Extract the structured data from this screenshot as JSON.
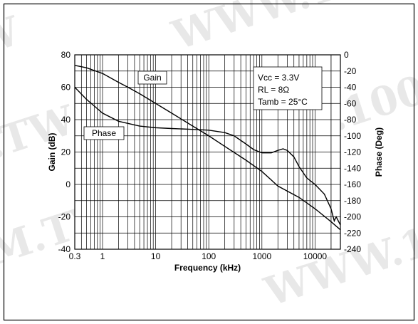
{
  "chart_data": {
    "type": "line",
    "title": "",
    "xlabel": "Frequency (kHz)",
    "ylabel_left": "Gain (dB)",
    "ylabel_right": "Phase (Deg)",
    "x_scale": "log",
    "xlim": [
      0.3,
      30000
    ],
    "ylim_left": [
      -40,
      80
    ],
    "ylim_right": [
      0,
      -240
    ],
    "x_ticks": [
      0.3,
      1,
      10,
      100,
      1000,
      10000
    ],
    "x_tick_labels": [
      "0.3",
      "1",
      "10",
      "100",
      "1000",
      "10000"
    ],
    "y_left_ticks": [
      80,
      60,
      40,
      20,
      0,
      -20,
      -40
    ],
    "y_left_tick_labels": [
      "80",
      "60",
      "40",
      "20",
      "0",
      "-20",
      "-40"
    ],
    "y_right_ticks": [
      0,
      -20,
      -40,
      -60,
      -80,
      -100,
      -120,
      -140,
      -160,
      -180,
      -200,
      -220,
      -240
    ],
    "y_right_tick_labels": [
      "0",
      "-20",
      "-40",
      "-60",
      "-80",
      "-100",
      "-120",
      "-140",
      "-160",
      "-180",
      "-200",
      "-220",
      "-240"
    ],
    "grid": true,
    "annotations": [
      {
        "lines": [
          "Vcc = 3.3V",
          "RL = 8Ω",
          "Tamb = 25°C"
        ]
      }
    ],
    "series": [
      {
        "name": "Gain",
        "axis": "left",
        "points": [
          [
            0.3,
            73.5
          ],
          [
            0.5,
            72
          ],
          [
            1,
            68.5
          ],
          [
            2,
            63
          ],
          [
            3,
            60
          ],
          [
            5,
            56
          ],
          [
            10,
            50
          ],
          [
            20,
            44
          ],
          [
            50,
            36
          ],
          [
            100,
            30
          ],
          [
            200,
            23.5
          ],
          [
            500,
            15
          ],
          [
            1000,
            8
          ],
          [
            2000,
            -1
          ],
          [
            5000,
            -8
          ],
          [
            10000,
            -15
          ],
          [
            20000,
            -23
          ],
          [
            30000,
            -28
          ]
        ]
      },
      {
        "name": "Phase",
        "axis": "right",
        "points": [
          [
            0.3,
            -40
          ],
          [
            0.5,
            -55
          ],
          [
            1,
            -72
          ],
          [
            2,
            -82
          ],
          [
            5,
            -88
          ],
          [
            10,
            -90
          ],
          [
            20,
            -91
          ],
          [
            50,
            -92
          ],
          [
            100,
            -93
          ],
          [
            200,
            -96
          ],
          [
            300,
            -100
          ],
          [
            500,
            -110
          ],
          [
            700,
            -117
          ],
          [
            1000,
            -121
          ],
          [
            1500,
            -121
          ],
          [
            2000,
            -118
          ],
          [
            2500,
            -116
          ],
          [
            3000,
            -118
          ],
          [
            4000,
            -126
          ],
          [
            5000,
            -138
          ],
          [
            7000,
            -152
          ],
          [
            10000,
            -160
          ],
          [
            15000,
            -172
          ],
          [
            20000,
            -190
          ],
          [
            23000,
            -205
          ],
          [
            25000,
            -200
          ],
          [
            30000,
            -210
          ]
        ]
      }
    ]
  }
}
